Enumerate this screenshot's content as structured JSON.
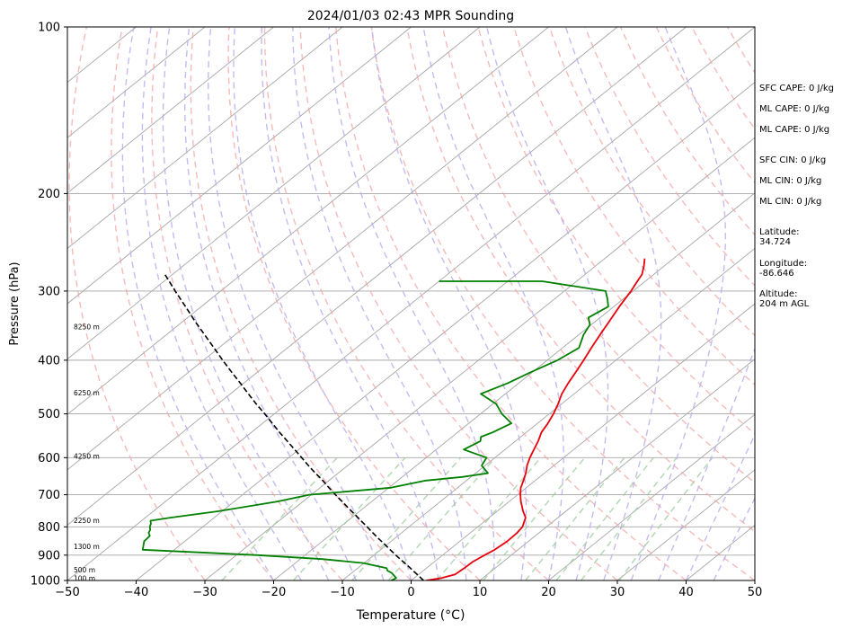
{
  "chart_data": {
    "type": "skewt",
    "title": "2024/01/03 02:43 MPR Sounding",
    "xlabel": "Temperature (°C)",
    "ylabel": "Pressure (hPa)",
    "xlim": [
      -50,
      50
    ],
    "ylim": [
      1000,
      100
    ],
    "y_scale": "log",
    "x_ticks": [
      "−50",
      "−40",
      "−30",
      "−20",
      "−10",
      "0",
      "10",
      "20",
      "30",
      "40",
      "50"
    ],
    "x_tick_values": [
      -50,
      -40,
      -30,
      -20,
      -10,
      0,
      10,
      20,
      30,
      40,
      50
    ],
    "y_ticks": [
      "100",
      "200",
      "300",
      "400",
      "500",
      "600",
      "700",
      "800",
      "900",
      "1000"
    ],
    "y_tick_values": [
      100,
      200,
      300,
      400,
      500,
      600,
      700,
      800,
      900,
      1000
    ],
    "height_labels": [
      {
        "label": "100 m",
        "p": 990
      },
      {
        "label": "500 m",
        "p": 957
      },
      {
        "label": "1300 m",
        "p": 867
      },
      {
        "label": "2250 m",
        "p": 778
      },
      {
        "label": "4250 m",
        "p": 596
      },
      {
        "label": "6250 m",
        "p": 458
      },
      {
        "label": "8250 m",
        "p": 348
      }
    ],
    "temperature": {
      "name": "Temperature",
      "color": "#e8000b",
      "p": [
        1000,
        990,
        975,
        950,
        925,
        900,
        880,
        850,
        820,
        800,
        770,
        750,
        720,
        700,
        680,
        660,
        640,
        620,
        600,
        580,
        560,
        540,
        520,
        500,
        480,
        460,
        440,
        420,
        400,
        380,
        360,
        340,
        320,
        300,
        290,
        280,
        270,
        262
      ],
      "t": [
        2.2,
        4.0,
        5.3,
        5.5,
        5.6,
        6.1,
        6.6,
        6.9,
        6.8,
        6.5,
        5.3,
        3.8,
        1.7,
        0.4,
        -0.8,
        -1.7,
        -2.7,
        -3.9,
        -4.9,
        -5.8,
        -6.7,
        -7.8,
        -8.5,
        -9.4,
        -10.5,
        -11.8,
        -12.8,
        -13.7,
        -14.7,
        -15.8,
        -16.9,
        -18.0,
        -19.2,
        -20.3,
        -21.0,
        -21.7,
        -23.0,
        -24.2
      ]
    },
    "dewpoint": {
      "name": "Dewpoint",
      "color": "#008000",
      "p": [
        1000,
        990,
        970,
        960,
        950,
        930,
        915,
        900,
        880,
        850,
        830,
        820,
        810,
        800,
        790,
        780,
        770,
        750,
        720,
        700,
        680,
        660,
        650,
        640,
        620,
        600,
        580,
        560,
        550,
        540,
        520,
        500,
        480,
        460,
        440,
        420,
        400,
        380,
        360,
        345,
        335,
        320,
        310,
        300,
        288,
        288
      ],
      "t": [
        -2.9,
        -2.6,
        -4.1,
        -5.2,
        -5.8,
        -10.1,
        -16.8,
        -26.9,
        -44.6,
        -45.9,
        -46.1,
        -46.8,
        -47.1,
        -47.7,
        -48.1,
        -48.7,
        -46.4,
        -40.6,
        -33.7,
        -30.3,
        -19.7,
        -15.9,
        -11.3,
        -8.2,
        -10.5,
        -11.2,
        -16.0,
        -15.1,
        -15.8,
        -14.9,
        -13.8,
        -16.9,
        -19.5,
        -23.6,
        -21.6,
        -20.2,
        -18.5,
        -17.6,
        -19.3,
        -20.2,
        -21.7,
        -20.8,
        -22.3,
        -24.0,
        -35.0,
        -50.0
      ]
    },
    "parcel": {
      "name": "Parcel",
      "color": "#000000",
      "p": [
        1000,
        980,
        960,
        940,
        920,
        900,
        880,
        860,
        840,
        820,
        800,
        780,
        760,
        740,
        720,
        700,
        680,
        660,
        640,
        620,
        600,
        580,
        560,
        540,
        520,
        500,
        480,
        460,
        440,
        420,
        400,
        380,
        360,
        340,
        320,
        300,
        290,
        280
      ],
      "t": [
        1.8,
        0.2,
        -1.5,
        -3.2,
        -5.0,
        -6.8,
        -8.6,
        -10.4,
        -12.3,
        -14.2,
        -16.1,
        -18.1,
        -20.1,
        -22.2,
        -24.3,
        -26.5,
        -28.7,
        -30.9,
        -33.3,
        -35.7,
        -38.1,
        -40.6,
        -43.2,
        -45.9,
        -48.6,
        -51.4,
        -54.4,
        -57.4,
        -60.5,
        -63.8,
        -67.2,
        -70.7,
        -74.4,
        -78.3,
        -82.3,
        -86.6,
        -88.8,
        -91.1
      ]
    },
    "grid": true
  },
  "side_panel": {
    "sfc_cape": "SFC CAPE: 0 J/kg",
    "ml_cape_1": "ML CAPE: 0 J/kg",
    "ml_cape_2": "ML CAPE: 0 J/kg",
    "sfc_cin": "SFC CIN: 0 J/kg",
    "ml_cin_1": "ML CIN: 0 J/kg",
    "ml_cin_2": "ML CIN: 0 J/kg",
    "latitude": "Latitude:\n34.724",
    "longitude": "Longitude:\n-86.646",
    "altitude": "Altitude:\n204 m AGL"
  }
}
